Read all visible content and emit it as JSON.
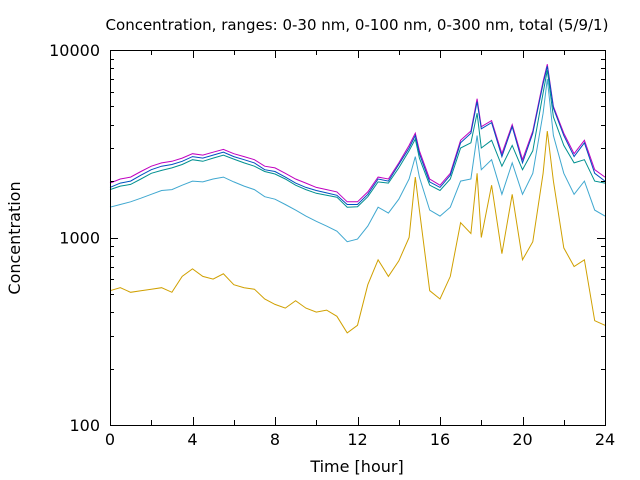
{
  "chart_data": {
    "type": "line",
    "title": "Concentration, ranges: 0-30 nm, 0-100 nm, 0-300 nm, total (5/9/1)",
    "xlabel": "Time [hour]",
    "ylabel": "Concentration",
    "xlim": [
      0,
      24
    ],
    "ylim": [
      100,
      10000
    ],
    "y_scale": "log",
    "grid": false,
    "x_ticks": [
      0,
      4,
      8,
      12,
      16,
      20,
      24
    ],
    "x_tick_labels": [
      "0",
      "4",
      "8",
      "12",
      "16",
      "20",
      "24"
    ],
    "y_ticks": [
      100,
      1000,
      10000
    ],
    "y_tick_labels": [
      "100",
      "1000",
      "10000"
    ],
    "x": [
      0,
      0.5,
      1,
      1.5,
      2,
      2.5,
      3,
      3.5,
      4,
      4.5,
      5,
      5.5,
      6,
      6.5,
      7,
      7.5,
      8,
      8.5,
      9,
      9.5,
      10,
      10.5,
      11,
      11.5,
      12,
      12.5,
      13,
      13.5,
      14,
      14.5,
      14.8,
      15,
      15.5,
      16,
      16.5,
      17,
      17.5,
      17.8,
      18,
      18.5,
      19,
      19.5,
      20,
      20.5,
      21,
      21.2,
      21.5,
      22,
      22.5,
      23,
      23.5,
      24
    ],
    "series": [
      {
        "color": "#c000c0",
        "values": [
          1950,
          2050,
          2100,
          2250,
          2400,
          2500,
          2550,
          2650,
          2800,
          2750,
          2850,
          2950,
          2800,
          2700,
          2600,
          2400,
          2350,
          2200,
          2050,
          1950,
          1850,
          1800,
          1750,
          1550,
          1550,
          1750,
          2100,
          2050,
          2500,
          3100,
          3600,
          2900,
          2050,
          1900,
          2200,
          3300,
          3700,
          5500,
          3900,
          4200,
          2800,
          4000,
          2600,
          3700,
          6800,
          8400,
          5000,
          3600,
          2800,
          3300,
          2300,
          2100
        ]
      },
      {
        "color": "#0050c0",
        "values": [
          1850,
          1950,
          2000,
          2150,
          2300,
          2400,
          2450,
          2550,
          2700,
          2650,
          2750,
          2850,
          2700,
          2600,
          2500,
          2300,
          2250,
          2100,
          1950,
          1850,
          1780,
          1730,
          1680,
          1500,
          1500,
          1700,
          2050,
          2000,
          2450,
          3000,
          3500,
          2800,
          1980,
          1850,
          2150,
          3200,
          3600,
          5300,
          3800,
          4100,
          2700,
          3900,
          2500,
          3600,
          6600,
          8200,
          4900,
          3500,
          2700,
          3200,
          2200,
          2000
        ]
      },
      {
        "color": "#009090",
        "values": [
          1800,
          1880,
          1920,
          2050,
          2200,
          2280,
          2350,
          2450,
          2600,
          2550,
          2650,
          2750,
          2620,
          2500,
          2400,
          2250,
          2180,
          2050,
          1900,
          1800,
          1720,
          1680,
          1640,
          1450,
          1460,
          1650,
          1980,
          1950,
          2350,
          2900,
          3350,
          2650,
          1900,
          1780,
          2050,
          3000,
          3200,
          4600,
          3000,
          3300,
          2400,
          3100,
          2300,
          2900,
          5900,
          7800,
          4400,
          3100,
          2500,
          2600,
          2000,
          1950
        ]
      },
      {
        "color": "#40a8d0",
        "values": [
          1450,
          1500,
          1550,
          1620,
          1700,
          1780,
          1800,
          1900,
          2000,
          1980,
          2050,
          2100,
          1980,
          1880,
          1800,
          1650,
          1600,
          1500,
          1400,
          1300,
          1220,
          1150,
          1080,
          950,
          980,
          1150,
          1450,
          1350,
          1600,
          2050,
          2700,
          2100,
          1400,
          1300,
          1450,
          2000,
          2050,
          3500,
          2300,
          2600,
          1700,
          2500,
          1700,
          2200,
          4600,
          7000,
          3500,
          2200,
          1700,
          2000,
          1400,
          1300
        ]
      },
      {
        "color": "#d0a000",
        "values": [
          520,
          540,
          510,
          520,
          530,
          540,
          510,
          620,
          680,
          620,
          600,
          640,
          560,
          540,
          530,
          470,
          440,
          420,
          460,
          420,
          400,
          410,
          380,
          310,
          340,
          560,
          760,
          620,
          750,
          1000,
          2100,
          1400,
          520,
          470,
          620,
          1200,
          1050,
          2200,
          1000,
          1900,
          820,
          1700,
          760,
          950,
          2200,
          3700,
          2000,
          880,
          700,
          760,
          360,
          340
        ]
      }
    ]
  }
}
